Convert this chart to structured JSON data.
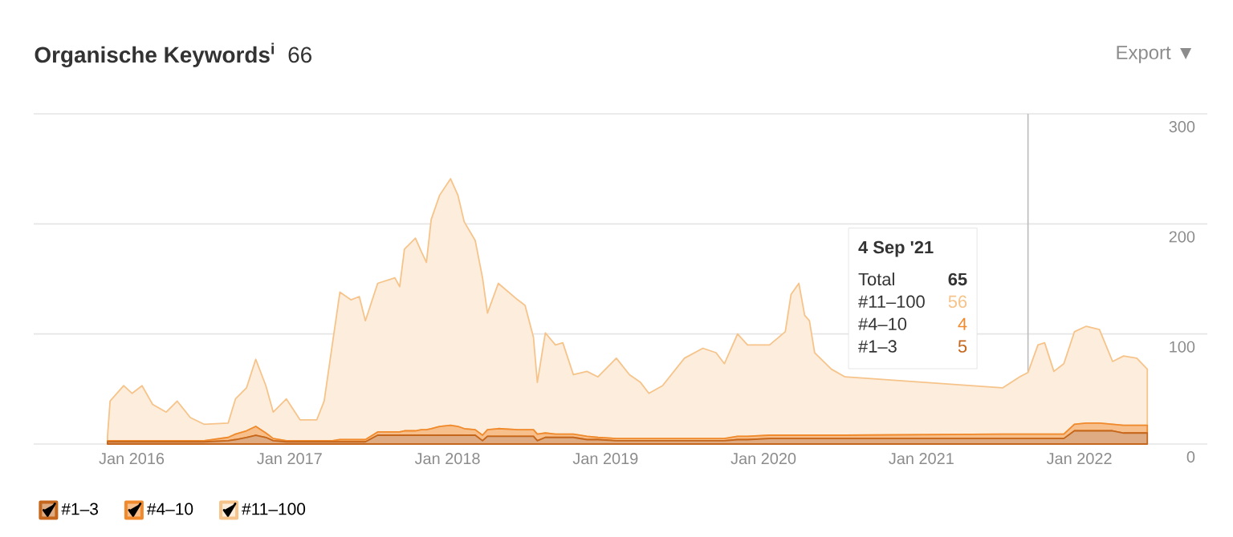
{
  "chart_data": {
    "type": "area",
    "title": "Organische Keywords$^{i}$",
    "subtitle": "66",
    "stacked": true,
    "grid": "y",
    "legend": "bottom left",
    "annotations": [
      "Export ▼",
      "4 Sep '21",
      "Total",
      "65",
      "#11–100",
      "56",
      "#4–10",
      "4",
      "#1–3",
      "5"
    ],
    "ref_lines": [
      {
        "axis": "x",
        "value": "2021-09-04",
        "color": "#bbbbbb"
      }
    ],
    "xlim": [
      "2015-05-18",
      "2022-10-23"
    ],
    "xticks": [
      {
        "value": "2016-01",
        "label": "Jan 2016"
      },
      {
        "value": "2017-01",
        "label": "Jan 2017"
      },
      {
        "value": "2018-01",
        "label": "Jan 2018"
      },
      {
        "value": "2019-01",
        "label": "Jan 2019"
      },
      {
        "value": "2020-01",
        "label": "Jan 2020"
      },
      {
        "value": "2021-01",
        "label": "Jan 2021"
      },
      {
        "value": "2022-01",
        "label": "Jan 2022"
      }
    ],
    "ylim": [
      0,
      300
    ],
    "yticks": [
      0,
      100,
      200,
      300
    ],
    "x": [
      "2015-11-06",
      "2015-11-12",
      "2015-12-13",
      "2016-01-02",
      "2016-01-25",
      "2016-02-19",
      "2016-03-20",
      "2016-04-15",
      "2016-05-15",
      "2016-06-16",
      "2016-08-11",
      "2016-08-28",
      "2016-09-23",
      "2016-10-14",
      "2016-11-07",
      "2016-11-24",
      "2016-12-24",
      "2017-01-25",
      "2017-03-03",
      "2017-03-20",
      "2017-04-09",
      "2017-04-26",
      "2017-05-21",
      "2017-06-10",
      "2017-06-24",
      "2017-07-22",
      "2017-09-01",
      "2017-09-12",
      "2017-09-23",
      "2017-10-18",
      "2017-11-01",
      "2017-11-13",
      "2017-11-24",
      "2017-12-13",
      "2018-01-08",
      "2018-01-25",
      "2018-02-09",
      "2018-03-04",
      "2018-03-21",
      "2018-04-02",
      "2018-04-27",
      "2018-06-11",
      "2018-06-28",
      "2018-07-17",
      "2018-07-26",
      "2018-08-14",
      "2018-09-07",
      "2018-09-24",
      "2018-10-18",
      "2018-11-19",
      "2018-12-14",
      "2019-01-26",
      "2019-02-26",
      "2019-03-21",
      "2019-04-10",
      "2019-05-11",
      "2019-07-01",
      "2019-08-13",
      "2019-09-13",
      "2019-10-02",
      "2019-11-02",
      "2019-11-25",
      "2020-01-15",
      "2020-02-21",
      "2020-03-04",
      "2020-03-22",
      "2020-04-05",
      "2020-04-16",
      "2020-04-28",
      "2020-06-06",
      "2020-07-07",
      "2021-07-06",
      "2021-08-15",
      "2021-09-04",
      "2021-09-27",
      "2021-10-12",
      "2021-11-03",
      "2021-11-26",
      "2021-12-20",
      "2022-01-17",
      "2022-02-17",
      "2022-03-17",
      "2022-04-12",
      "2022-05-12",
      "2022-06-06"
    ],
    "series": [
      {
        "name": "#1–3",
        "color": "#c4661c",
        "values": [
          2,
          2,
          2,
          2,
          2,
          2,
          2,
          2,
          2,
          2,
          3,
          4,
          6,
          8,
          6,
          3,
          2,
          2,
          2,
          2,
          2,
          2,
          2,
          2,
          2,
          8,
          8,
          8,
          8,
          8,
          8,
          8,
          8,
          8,
          8,
          8,
          8,
          8,
          3,
          7,
          7,
          7,
          7,
          7,
          3,
          6,
          6,
          6,
          6,
          4,
          4,
          3,
          3,
          3,
          3,
          3,
          3,
          3,
          3,
          3,
          4,
          4,
          5,
          5,
          5,
          5,
          5,
          5,
          5,
          5,
          5,
          5,
          5,
          5,
          5,
          5,
          5,
          5,
          12,
          12,
          12,
          12,
          10,
          10,
          10
        ]
      },
      {
        "name": "#4–10",
        "color": "#f08a2c",
        "values": [
          1,
          1,
          1,
          1,
          1,
          1,
          1,
          1,
          1,
          1,
          3,
          5,
          6,
          8,
          4,
          2,
          1,
          1,
          1,
          1,
          1,
          2,
          2,
          2,
          2,
          3,
          3,
          3,
          4,
          4,
          5,
          5,
          6,
          8,
          9,
          8,
          6,
          5,
          5,
          6,
          7,
          6,
          6,
          6,
          6,
          4,
          3,
          3,
          3,
          3,
          2,
          2,
          2,
          2,
          2,
          2,
          2,
          2,
          2,
          2,
          3,
          3,
          3,
          3,
          3,
          3,
          3,
          3,
          3,
          3,
          3,
          4,
          4,
          4,
          4,
          4,
          4,
          4,
          6,
          7,
          7,
          6,
          7,
          7,
          7
        ]
      },
      {
        "name": "#11–100",
        "color": "#f6c48a",
        "values": [
          4,
          36,
          50,
          43,
          50,
          33,
          26,
          36,
          21,
          15,
          13,
          32,
          39,
          61,
          43,
          24,
          38,
          19,
          19,
          36,
          89,
          134,
          127,
          130,
          108,
          135,
          140,
          132,
          165,
          175,
          162,
          152,
          190,
          210,
          224,
          210,
          188,
          172,
          143,
          106,
          132,
          118,
          113,
          84,
          47,
          91,
          81,
          83,
          54,
          59,
          55,
          73,
          58,
          51,
          41,
          48,
          73,
          82,
          78,
          68,
          93,
          83,
          82,
          94,
          128,
          138,
          109,
          104,
          75,
          60,
          53,
          42,
          52,
          56,
          81,
          83,
          57,
          64,
          84,
          88,
          85,
          57,
          63,
          61,
          51
        ]
      }
    ]
  }
}
